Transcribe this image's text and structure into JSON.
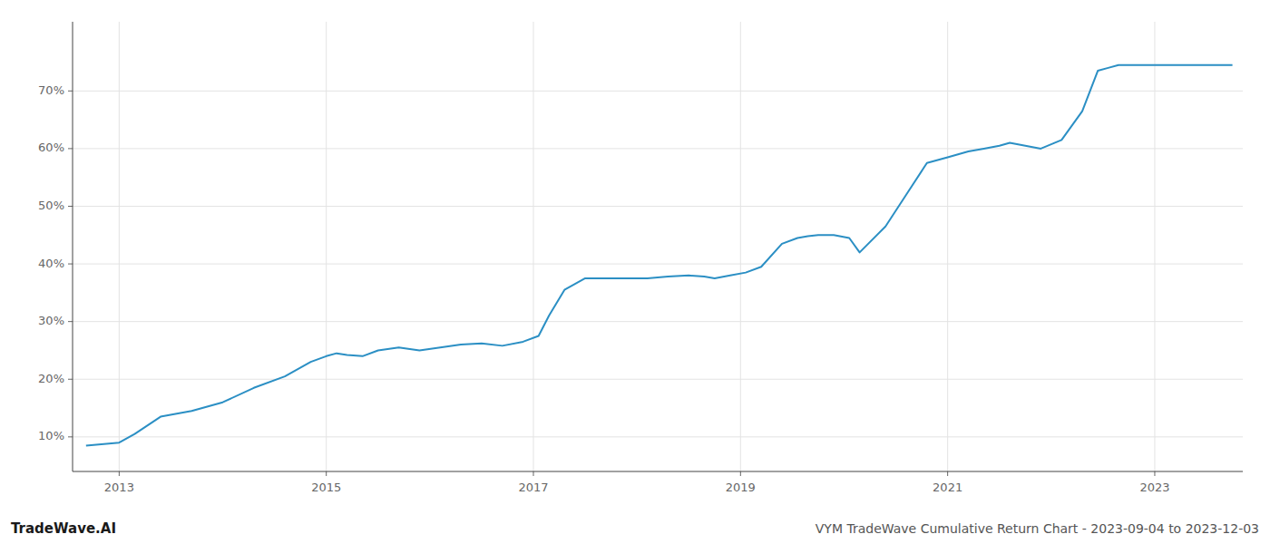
{
  "chart_data": {
    "type": "line",
    "title": "VYM TradeWave Cumulative Return Chart - 2023-09-04 to 2023-12-03",
    "annotations": [
      "TradeWave.AI"
    ],
    "x": [
      2012.68,
      2013.0,
      2013.15,
      2013.4,
      2013.7,
      2014.0,
      2014.3,
      2014.6,
      2014.85,
      2015.0,
      2015.1,
      2015.2,
      2015.35,
      2015.5,
      2015.7,
      2015.9,
      2016.1,
      2016.3,
      2016.5,
      2016.7,
      2016.9,
      2017.05,
      2017.15,
      2017.3,
      2017.5,
      2017.7,
      2017.9,
      2018.1,
      2018.3,
      2018.5,
      2018.65,
      2018.75,
      2018.9,
      2019.05,
      2019.2,
      2019.4,
      2019.55,
      2019.65,
      2019.75,
      2019.9,
      2020.05,
      2020.15,
      2020.4,
      2020.6,
      2020.8,
      2021.0,
      2021.1,
      2021.2,
      2021.35,
      2021.5,
      2021.6,
      2021.75,
      2021.9,
      2022.1,
      2022.3,
      2022.45,
      2022.55,
      2022.65,
      2022.8,
      2023.0,
      2023.25,
      2023.5,
      2023.75
    ],
    "values": [
      8.5,
      9.0,
      10.5,
      13.5,
      14.5,
      16.0,
      18.5,
      20.5,
      23.0,
      24.0,
      24.5,
      24.2,
      24.0,
      25.0,
      25.5,
      25.0,
      25.5,
      26.0,
      26.2,
      25.8,
      26.5,
      27.5,
      31.0,
      35.5,
      37.5,
      37.5,
      37.5,
      37.5,
      37.8,
      38.0,
      37.8,
      37.5,
      38.0,
      38.5,
      39.5,
      43.5,
      44.5,
      44.8,
      45.0,
      45.0,
      44.5,
      42.0,
      46.5,
      52.0,
      57.5,
      58.5,
      59.0,
      59.5,
      60.0,
      60.5,
      61.0,
      60.5,
      60.0,
      61.5,
      66.5,
      73.5,
      74.0,
      74.5,
      74.5,
      74.5,
      74.5,
      74.5,
      74.5
    ],
    "color": "#2b8fc4",
    "xlim": [
      2012.55,
      2023.85
    ],
    "ylim": [
      4,
      82
    ],
    "xticks": [
      2013,
      2015,
      2017,
      2019,
      2021,
      2023
    ],
    "yticks": [
      {
        "value": 10,
        "label": "10%"
      },
      {
        "value": 20,
        "label": "20%"
      },
      {
        "value": 30,
        "label": "30%"
      },
      {
        "value": 40,
        "label": "40%"
      },
      {
        "value": 50,
        "label": "50%"
      },
      {
        "value": 60,
        "label": "60%"
      },
      {
        "value": 70,
        "label": "70%"
      }
    ],
    "grid": true
  }
}
